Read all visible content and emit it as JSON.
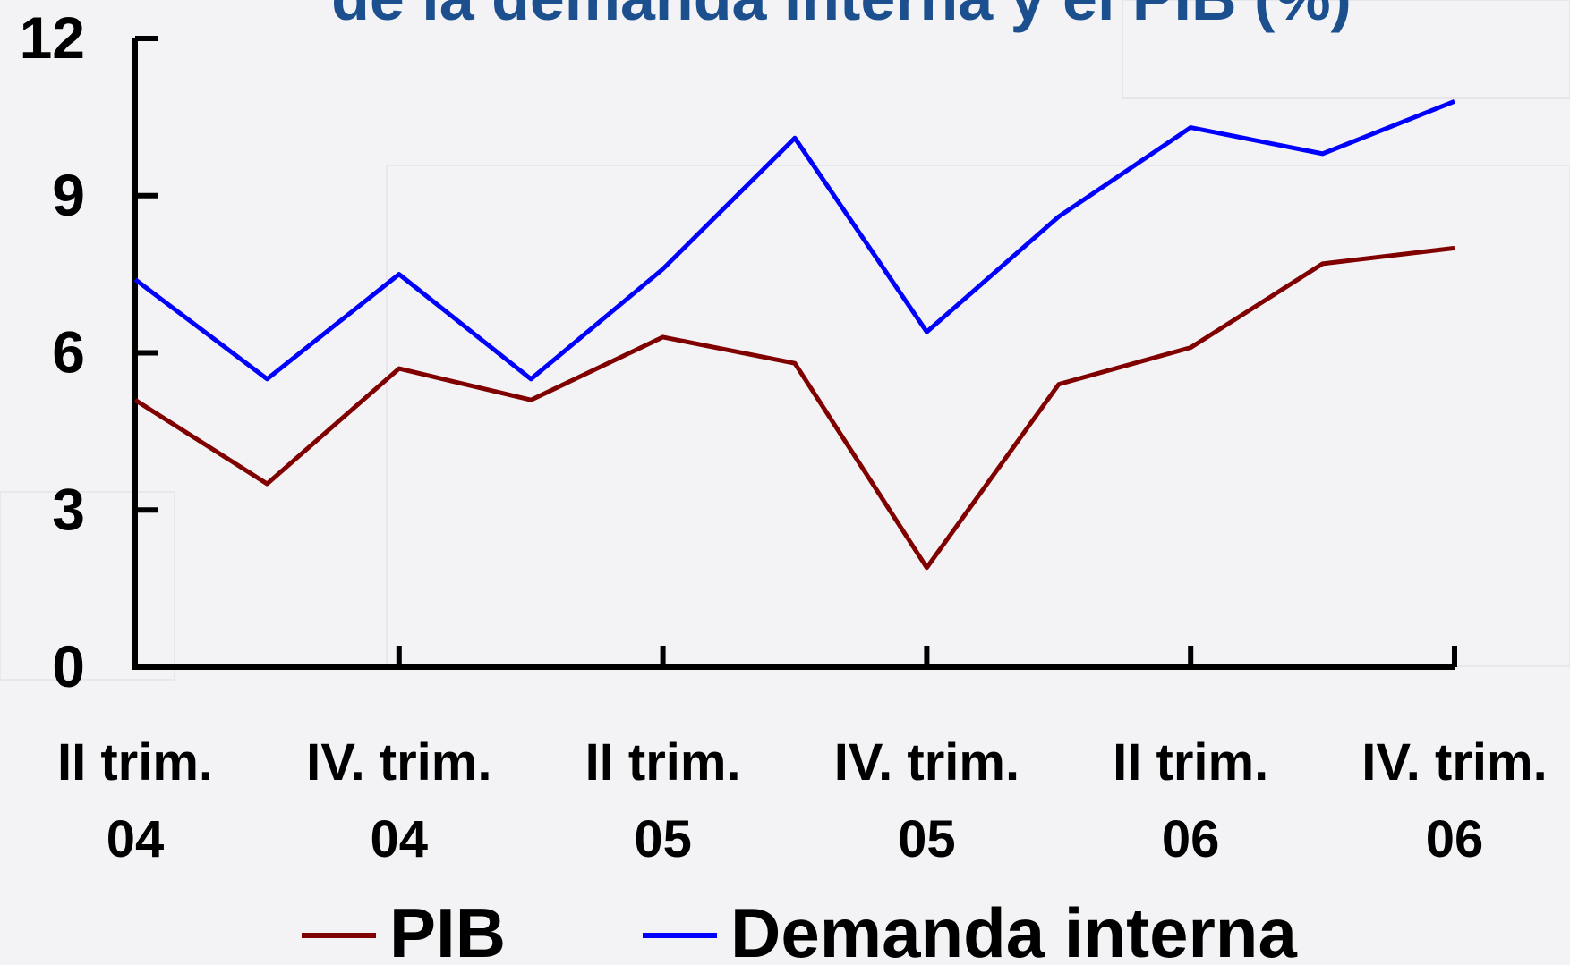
{
  "chart_data": {
    "type": "line",
    "title": "de la demanda interna y el PIB (%)",
    "categories": [
      "II trim.\n04",
      null,
      "IV. trim.\n04",
      null,
      "II trim.\n05",
      null,
      "IV. trim.\n05",
      null,
      "II trim.\n06",
      null,
      "IV. trim.\n06"
    ],
    "series": [
      {
        "name": "PIB",
        "color": "#800000",
        "values": [
          5.1,
          3.5,
          5.7,
          5.1,
          6.3,
          5.8,
          1.9,
          5.4,
          6.1,
          7.7,
          8.0
        ]
      },
      {
        "name": "Demanda interna",
        "color": "#0000ff",
        "values": [
          7.4,
          5.5,
          7.5,
          5.5,
          7.6,
          10.1,
          6.4,
          8.6,
          10.3,
          9.8,
          10.8
        ]
      }
    ],
    "ylim": [
      0,
      12
    ],
    "yticks": [
      0,
      3,
      6,
      9,
      12
    ],
    "grid": false
  }
}
